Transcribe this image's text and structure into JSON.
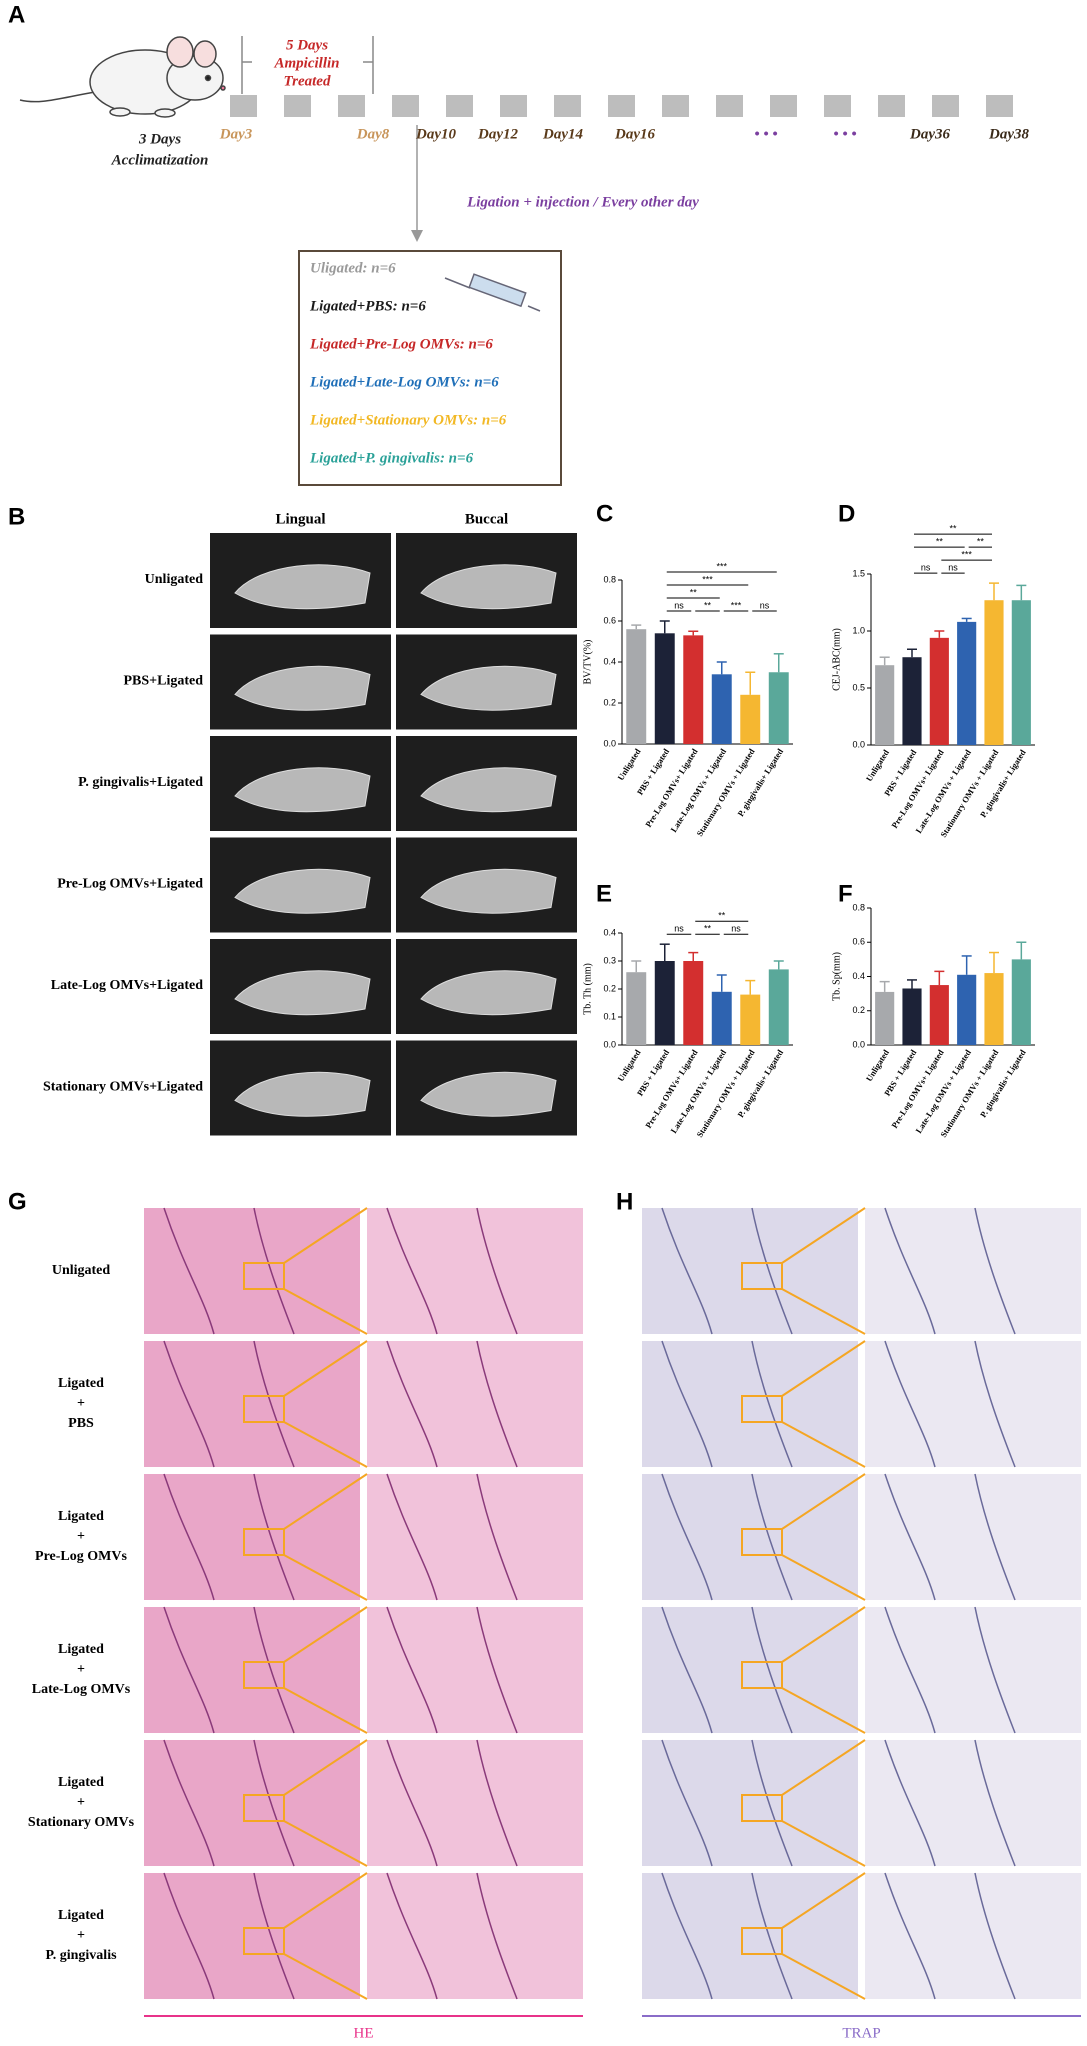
{
  "panel_labels": [
    "A",
    "B",
    "C",
    "D",
    "E",
    "F",
    "G",
    "H"
  ],
  "timeline": {
    "treatment": [
      "5 Days",
      "Ampicillin",
      "Treated"
    ],
    "acclimatization": [
      "3 Days",
      "Acclimatization"
    ],
    "days": [
      {
        "label": "Day3",
        "color": "#c8955a"
      },
      {
        "label": "Day8",
        "color": "#c8955a"
      },
      {
        "label": "Day10",
        "color": "#5a3a1a"
      },
      {
        "label": "Day12",
        "color": "#5a3a1a"
      },
      {
        "label": "Day14",
        "color": "#5a3a1a"
      },
      {
        "label": "Day16",
        "color": "#5a3a1a"
      },
      {
        "label": "• • •",
        "color": "#7b3fa0"
      },
      {
        "label": "• • •",
        "color": "#7b3fa0"
      },
      {
        "label": "Day36",
        "color": "#3a2a1a"
      },
      {
        "label": "Day38",
        "color": "#3a2a1a"
      }
    ],
    "procedure": "Ligation + injection / Every other day",
    "groups": [
      {
        "label": "Uligated: n=6",
        "color": "#9a9a9a"
      },
      {
        "label": "Ligated+PBS: n=6",
        "color": "#1a1a1a"
      },
      {
        "label": "Ligated+Pre-Log OMVs: n=6",
        "color": "#c62828"
      },
      {
        "label": "Ligated+Late-Log OMVs: n=6",
        "color": "#1f6fb8"
      },
      {
        "label": "Ligated+Stationary OMVs: n=6",
        "color": "#f2b824"
      },
      {
        "label": "Ligated+P. gingivalis: n=6",
        "color": "#2aa198"
      }
    ]
  },
  "ct": {
    "views": [
      "Lingual",
      "Buccal"
    ],
    "rows": [
      "Unligated",
      "PBS+Ligated",
      "P. gingivalis+Ligated",
      "Pre-Log OMVs+Ligated",
      "Late-Log OMVs+Ligated",
      "Stationary OMVs+Ligated"
    ]
  },
  "chart_data": [
    {
      "type": "bar",
      "y_label": "BV/TV(%)",
      "categories": [
        "Unligated",
        "PBS + Ligated",
        "Pre-Log OMVs+ Ligated",
        "Late-Log OMVs + Ligated",
        "Stationary OMVs + Ligated",
        "P. gingivalis+ Ligated"
      ],
      "values": [
        0.56,
        0.54,
        0.53,
        0.34,
        0.24,
        0.35
      ],
      "errors": [
        0.02,
        0.06,
        0.02,
        0.06,
        0.11,
        0.09
      ],
      "colors": [
        "#a7a9ac",
        "#1c2237",
        "#d32f2f",
        "#2e63b0",
        "#f5b731",
        "#5aa89a"
      ],
      "ylim": [
        0,
        0.8
      ],
      "yticks": [
        {
          "value": 0,
          "label": "0.0"
        },
        0.2,
        0.4,
        0.6,
        0.8
      ],
      "significance": [
        {
          "groups": [
            1,
            5
          ],
          "label": "***"
        },
        {
          "groups": [
            1,
            4
          ],
          "label": "***"
        },
        {
          "groups": [
            1,
            3
          ],
          "label": "**"
        },
        {
          "groups": [
            1,
            2
          ],
          "label": "ns"
        },
        {
          "groups": [
            2,
            3
          ],
          "label": "**"
        },
        {
          "groups": [
            3,
            4
          ],
          "label": "***"
        },
        {
          "groups": [
            4,
            5
          ],
          "label": "ns"
        }
      ]
    },
    {
      "type": "bar",
      "y_label": "CEJ-ABC(mm)",
      "categories": [
        "Unligated",
        "PBS + Ligated",
        "Pre-Log OMVs+ Ligated",
        "Late-Log OMVs + Ligated",
        "Stationary OMVs + Ligated",
        "P. gingivalis+ Ligated"
      ],
      "values": [
        0.7,
        0.77,
        0.94,
        1.08,
        1.27,
        1.27
      ],
      "errors": [
        0.07,
        0.07,
        0.06,
        0.03,
        0.15,
        0.13
      ],
      "colors": [
        "#a7a9ac",
        "#1c2237",
        "#d32f2f",
        "#2e63b0",
        "#f5b731",
        "#5aa89a"
      ],
      "ylim": [
        0,
        1.5
      ],
      "yticks": [
        {
          "value": 0,
          "label": "0.0"
        },
        0.5,
        {
          "value": 1,
          "label": "1.0"
        },
        1.5
      ],
      "significance": [
        {
          "groups": [
            1,
            4
          ],
          "label": "**"
        },
        {
          "groups": [
            1,
            3
          ],
          "label": "**"
        },
        {
          "groups": [
            3,
            4
          ],
          "label": "**"
        },
        {
          "groups": [
            2,
            4
          ],
          "label": "***"
        },
        {
          "groups": [
            1,
            2
          ],
          "label": "ns"
        },
        {
          "groups": [
            2,
            3
          ],
          "label": "ns"
        }
      ]
    },
    {
      "type": "bar",
      "y_label": "Tb. Th (mm)",
      "categories": [
        "Unligated",
        "PBS + Ligated",
        "Pre-Log OMVs+ Ligated",
        "Late-Log OMVs + Ligated",
        "Stationary OMVs + Ligated",
        "P. gingivalis+ Ligated"
      ],
      "values": [
        0.26,
        0.3,
        0.3,
        0.19,
        0.18,
        0.27
      ],
      "errors": [
        0.04,
        0.06,
        0.03,
        0.06,
        0.05,
        0.03
      ],
      "colors": [
        "#a7a9ac",
        "#1c2237",
        "#d32f2f",
        "#2e63b0",
        "#f5b731",
        "#5aa89a"
      ],
      "ylim": [
        0,
        0.4
      ],
      "yticks": [
        {
          "value": 0,
          "label": "0.0"
        },
        0.1,
        0.2,
        0.3,
        0.4
      ],
      "significance": [
        {
          "groups": [
            2,
            4
          ],
          "label": "**"
        },
        {
          "groups": [
            1,
            2
          ],
          "label": "ns"
        },
        {
          "groups": [
            2,
            3
          ],
          "label": "**"
        },
        {
          "groups": [
            3,
            4
          ],
          "label": "ns"
        }
      ]
    },
    {
      "type": "bar",
      "y_label": "Tb. Sp(mm)",
      "categories": [
        "Unligated",
        "PBS + Ligated",
        "Pre-Log OMVs+ Ligated",
        "Late-Log OMVs + Ligated",
        "Stationary OMVs + Ligated",
        "P. gingivalis+ Ligated"
      ],
      "values": [
        0.31,
        0.33,
        0.35,
        0.41,
        0.42,
        0.5
      ],
      "errors": [
        0.06,
        0.05,
        0.08,
        0.11,
        0.12,
        0.1
      ],
      "colors": [
        "#a7a9ac",
        "#1c2237",
        "#d32f2f",
        "#2e63b0",
        "#f5b731",
        "#5aa89a"
      ],
      "ylim": [
        0,
        0.8
      ],
      "yticks": [
        {
          "value": 0,
          "label": "0.0"
        },
        0.2,
        0.4,
        0.6,
        0.8
      ],
      "significance": []
    }
  ],
  "histology": {
    "rows": [
      [
        "Unligated"
      ],
      [
        "Ligated",
        "+",
        "PBS"
      ],
      [
        "Ligated",
        "+",
        "Pre-Log OMVs"
      ],
      [
        "Ligated",
        "+",
        "Late-Log OMVs"
      ],
      [
        "Ligated",
        "+",
        "Stationary OMVs"
      ],
      [
        "Ligated",
        "+",
        "P. gingivalis"
      ]
    ],
    "stains": [
      {
        "label": "HE",
        "color": "#e8338a"
      },
      {
        "label": "TRAP",
        "color": "#8a6cc8"
      }
    ]
  }
}
